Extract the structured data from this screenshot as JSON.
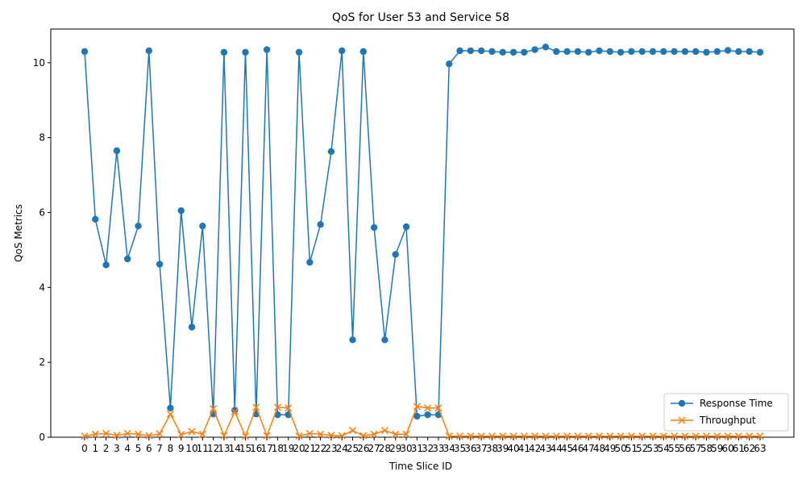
{
  "chart_data": {
    "type": "line",
    "title": "QoS for User 53 and Service 58",
    "xlabel": "Time Slice ID",
    "ylabel": "QoS Metrics",
    "ylim": [
      0,
      10.9
    ],
    "yticks": [
      "0",
      "2",
      "4",
      "6",
      "8",
      "10"
    ],
    "grid": false,
    "legend_position": "lower-right",
    "categories": [
      "0",
      "1",
      "2",
      "3",
      "4",
      "5",
      "6",
      "7",
      "8",
      "9",
      "10",
      "11",
      "12",
      "13",
      "14",
      "15",
      "16",
      "17",
      "18",
      "19",
      "20",
      "21",
      "22",
      "23",
      "24",
      "25",
      "26",
      "27",
      "28",
      "29",
      "30",
      "31",
      "32",
      "33",
      "34",
      "35",
      "36",
      "37",
      "38",
      "39",
      "40",
      "41",
      "42",
      "43",
      "44",
      "45",
      "46",
      "47",
      "48",
      "49",
      "50",
      "51",
      "52",
      "53",
      "54",
      "55",
      "56",
      "57",
      "58",
      "59",
      "60",
      "61",
      "62",
      "63"
    ],
    "series": [
      {
        "name": "Response Time",
        "color": "#1f77b4",
        "marker": "circle",
        "values": [
          10.3,
          5.82,
          4.6,
          7.65,
          4.76,
          5.64,
          10.32,
          4.62,
          0.78,
          6.05,
          2.94,
          5.64,
          0.62,
          10.28,
          0.72,
          10.28,
          0.62,
          10.35,
          0.6,
          0.6,
          10.28,
          4.67,
          5.68,
          7.63,
          10.32,
          2.6,
          10.3,
          5.6,
          2.6,
          4.88,
          5.62,
          0.56,
          0.6,
          0.6,
          9.97,
          10.32,
          10.32,
          10.32,
          10.3,
          10.28,
          10.28,
          10.28,
          10.35,
          10.42,
          10.3,
          10.3,
          10.3,
          10.28,
          10.32,
          10.3,
          10.28,
          10.3,
          10.3,
          10.3,
          10.3,
          10.3,
          10.3,
          10.3,
          10.28,
          10.3,
          10.33,
          10.3,
          10.3,
          10.28
        ]
      },
      {
        "name": "Throughput",
        "color": "#ff7f0e",
        "marker": "x",
        "values": [
          0.03,
          0.08,
          0.1,
          0.05,
          0.1,
          0.08,
          0.04,
          0.09,
          0.62,
          0.07,
          0.15,
          0.08,
          0.76,
          0.04,
          0.68,
          0.03,
          0.8,
          0.04,
          0.8,
          0.78,
          0.03,
          0.1,
          0.08,
          0.05,
          0.04,
          0.18,
          0.04,
          0.08,
          0.18,
          0.08,
          0.08,
          0.82,
          0.78,
          0.78,
          0.03,
          0.03,
          0.03,
          0.03,
          0.03,
          0.03,
          0.03,
          0.03,
          0.03,
          0.03,
          0.03,
          0.03,
          0.03,
          0.03,
          0.03,
          0.03,
          0.03,
          0.03,
          0.03,
          0.03,
          0.03,
          0.03,
          0.03,
          0.03,
          0.03,
          0.03,
          0.03,
          0.03,
          0.03,
          0.03
        ]
      }
    ]
  }
}
